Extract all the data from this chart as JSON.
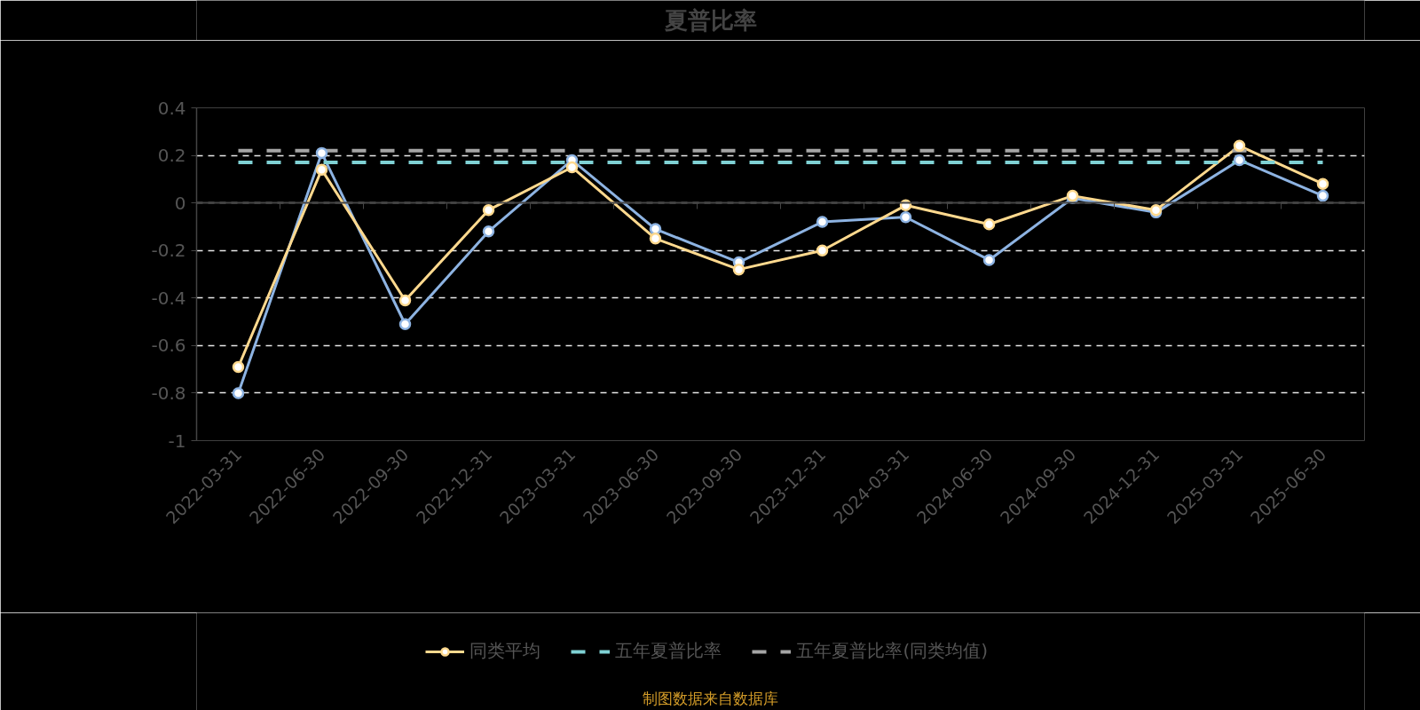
{
  "chart_data": {
    "type": "line",
    "title": "夏普比率",
    "categories": [
      "2022-03-31",
      "2022-06-30",
      "2022-09-30",
      "2022-12-31",
      "2023-03-31",
      "2023-06-30",
      "2023-09-30",
      "2023-12-31",
      "2024-03-31",
      "2024-06-30",
      "2024-09-30",
      "2024-12-31",
      "2025-03-31",
      "2025-06-30"
    ],
    "series": [
      {
        "color": "#8db3e2",
        "values": [
          -0.8,
          0.21,
          -0.51,
          -0.12,
          0.18,
          -0.11,
          -0.25,
          -0.08,
          -0.06,
          -0.24,
          0.02,
          -0.04,
          0.18,
          0.03
        ]
      },
      {
        "name": "同类平均",
        "color": "#ffd98e",
        "values": [
          -0.69,
          0.14,
          -0.41,
          -0.03,
          0.15,
          -0.15,
          -0.28,
          -0.2,
          -0.01,
          -0.09,
          0.03,
          -0.03,
          0.24,
          0.08
        ]
      },
      {
        "name": "五年夏普比率",
        "color": "#7fd1d4",
        "marker": "none",
        "line_style": "dashed",
        "values": [
          0.17,
          0.17,
          0.17,
          0.17,
          0.17,
          0.17,
          0.17,
          0.17,
          0.17,
          0.17,
          0.17,
          0.17,
          0.17,
          0.17
        ]
      },
      {
        "name": "五年夏普比率(同类均值)",
        "color": "#a5a5a5",
        "marker": "none",
        "line_style": "dashed",
        "values": [
          0.22,
          0.22,
          0.22,
          0.22,
          0.22,
          0.22,
          0.22,
          0.22,
          0.22,
          0.22,
          0.22,
          0.22,
          0.22,
          0.22
        ]
      }
    ],
    "ylim": [
      -1,
      0.4
    ],
    "yticks": [
      0.4,
      0.2,
      0,
      -0.2,
      -0.4,
      -0.6,
      -0.8,
      -1
    ],
    "grid": "y",
    "legend": "bottom",
    "marker": "circle",
    "line_style": "solid",
    "annotations": [
      "制图数据来自数据库"
    ]
  }
}
